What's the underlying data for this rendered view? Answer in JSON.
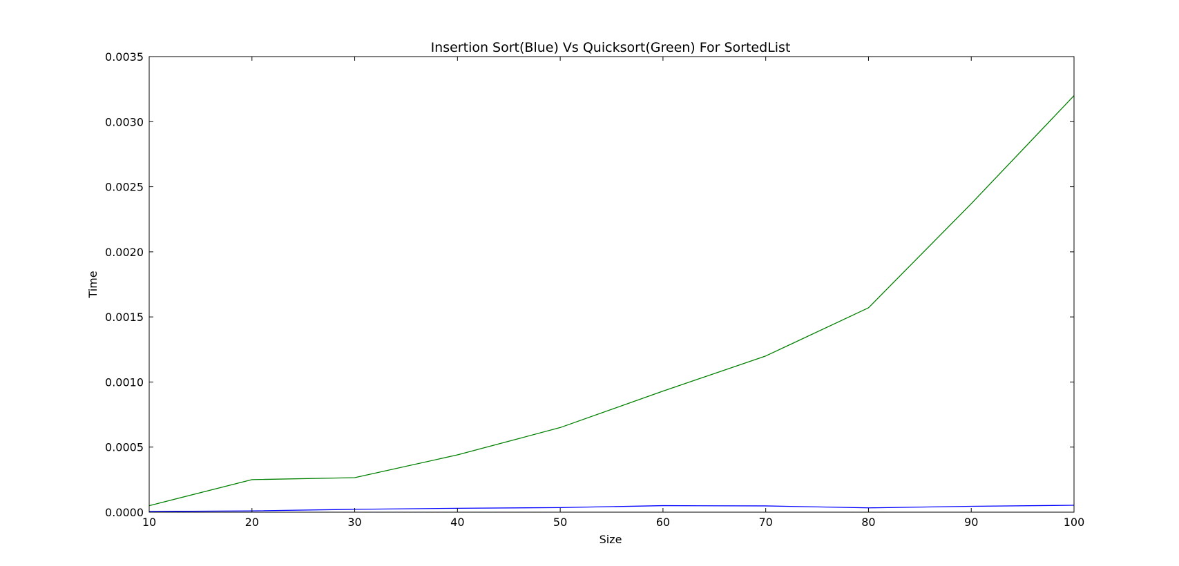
{
  "chart_data": {
    "type": "line",
    "title": "Insertion Sort(Blue) Vs Quicksort(Green) For SortedList",
    "xlabel": "Size",
    "ylabel": "Time",
    "x": [
      10,
      20,
      30,
      40,
      50,
      60,
      70,
      80,
      90,
      100
    ],
    "xlim": [
      10,
      100
    ],
    "ylim": [
      0,
      0.0035
    ],
    "xticks": [
      "10",
      "20",
      "30",
      "40",
      "50",
      "60",
      "70",
      "80",
      "90",
      "100"
    ],
    "yticks": [
      "0.0000",
      "0.0005",
      "0.0010",
      "0.0015",
      "0.0020",
      "0.0025",
      "0.0030",
      "0.0035"
    ],
    "grid": false,
    "series": [
      {
        "color": "#0000ff",
        "values": [
          5e-06,
          1e-05,
          2.2e-05,
          3e-05,
          3.5e-05,
          5e-05,
          4.8e-05,
          3.3e-05,
          4.5e-05,
          5.3e-05
        ]
      },
      {
        "color": "#008000",
        "values": [
          5e-05,
          0.00025,
          0.000265,
          0.00044,
          0.00065,
          0.00093,
          0.0012,
          0.00157,
          0.00237,
          0.0032
        ]
      }
    ]
  }
}
